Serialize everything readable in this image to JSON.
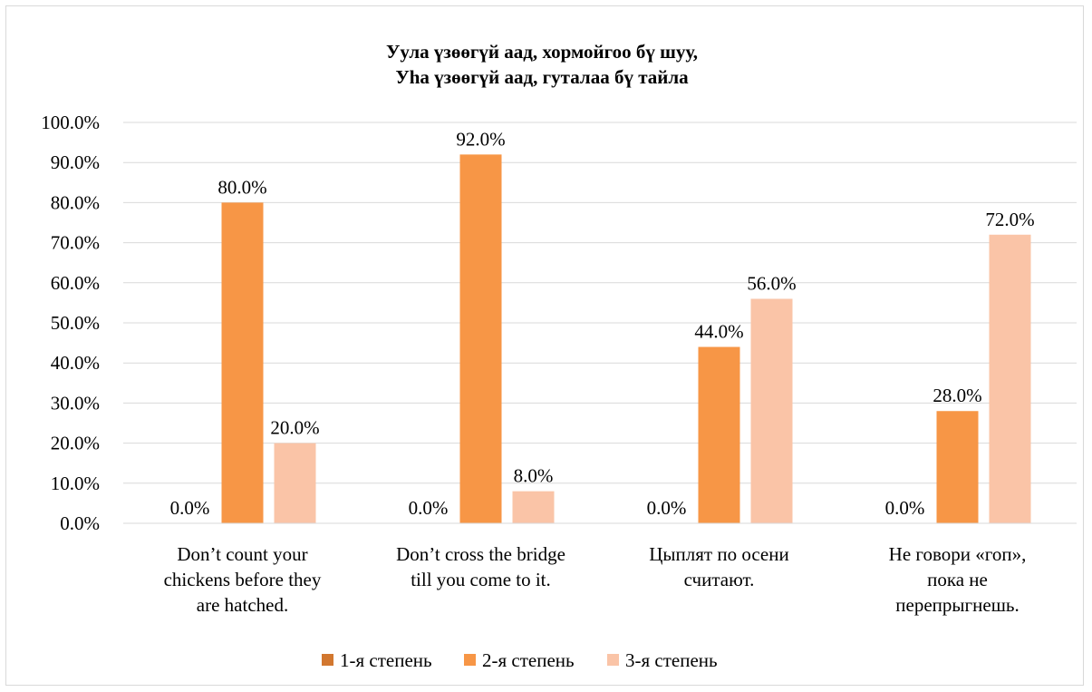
{
  "chart_data": {
    "type": "bar",
    "title_lines": [
      "Уула үзөөгүй аад, хормойгоо бү шуу,",
      "Уhа үзөөгүй аад, гуталаа бү тайла"
    ],
    "categories": [
      [
        "Don’t count your",
        "chickens before they",
        "are hatched."
      ],
      [
        "Don’t cross the bridge",
        "till you come to it."
      ],
      [
        "Цыплят по осени",
        "считают."
      ],
      [
        "Не говори «гоп»,",
        "пока не",
        "перепрыгнешь."
      ]
    ],
    "series": [
      {
        "name": "1-я степень",
        "values": [
          0.0,
          0.0,
          0.0,
          0.0
        ],
        "labels": [
          "0.0%",
          "0.0%",
          "0.0%",
          "0.0%"
        ],
        "color": "#d2772f"
      },
      {
        "name": "2-я степень",
        "values": [
          80.0,
          92.0,
          44.0,
          28.0
        ],
        "labels": [
          "80.0%",
          "92.0%",
          "44.0%",
          "28.0%"
        ],
        "color": "#f79646"
      },
      {
        "name": "3-я степень",
        "values": [
          20.0,
          8.0,
          56.0,
          72.0
        ],
        "labels": [
          "20.0%",
          "8.0%",
          "56.0%",
          "72.0%"
        ],
        "color": "#fac4a7"
      }
    ],
    "ylim": [
      0,
      100
    ],
    "yticks": [
      "0.0%",
      "10.0%",
      "20.0%",
      "30.0%",
      "40.0%",
      "50.0%",
      "60.0%",
      "70.0%",
      "80.0%",
      "90.0%",
      "100.0%"
    ],
    "grid": true,
    "legend_position": "bottom",
    "xlabel": "",
    "ylabel": ""
  }
}
